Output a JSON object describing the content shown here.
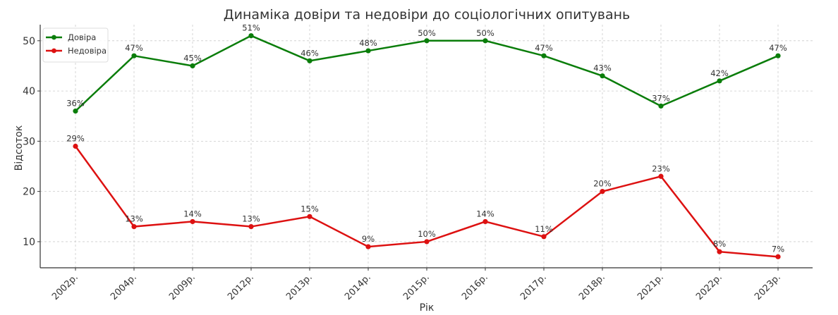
{
  "chart_data": {
    "type": "line",
    "title": "Динаміка довіри та недовіри до соціологічних опитувань",
    "xlabel": "Рік",
    "ylabel": "Відсоток",
    "categories": [
      "2002р.",
      "2004р.",
      "2009р.",
      "2012р.",
      "2013р.",
      "2014р.",
      "2015р.",
      "2016р.",
      "2017р.",
      "2018р.",
      "2021р.",
      "2022р.",
      "2023р."
    ],
    "series": [
      {
        "name": "Довіра",
        "color": "#0a7d0a",
        "values": [
          36,
          47,
          45,
          51,
          46,
          48,
          50,
          50,
          47,
          43,
          37,
          42,
          47
        ]
      },
      {
        "name": "Недовіра",
        "color": "#dd1111",
        "values": [
          29,
          13,
          14,
          13,
          15,
          9,
          10,
          14,
          11,
          20,
          23,
          8,
          7
        ]
      }
    ],
    "yticks": [
      10,
      20,
      30,
      40,
      50
    ],
    "ylim": [
      4.8,
      53.2
    ],
    "grid": true,
    "legend": "top-left",
    "data_label_suffix": "%"
  }
}
